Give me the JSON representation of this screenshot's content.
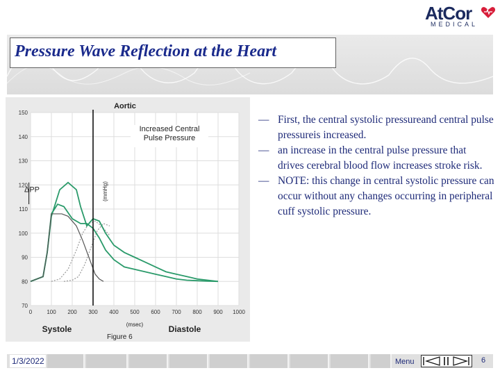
{
  "header": {
    "title": "Pressure Wave Reflection at the Heart",
    "logo_text": "AtCor",
    "logo_sub": "MEDICAL"
  },
  "colors": {
    "title": "#1a2a8c",
    "text": "#1e2a78",
    "curve": "#2a9a6a",
    "dotted": "#999999"
  },
  "chart_data": {
    "type": "line",
    "title": "Aortic",
    "xlabel": "(msec)",
    "ylabel": "(mmHg)",
    "x_ticks": [
      "0",
      "100",
      "200",
      "300",
      "400",
      "500",
      "600",
      "700",
      "800",
      "900",
      "1000"
    ],
    "y_ticks": [
      "70",
      "80",
      "90",
      "100",
      "110",
      "120",
      "130",
      "140",
      "150"
    ],
    "xlim": [
      0,
      1000
    ],
    "ylim": [
      70,
      150
    ],
    "grid": true,
    "phase_labels": [
      "Systole",
      "Diastole"
    ],
    "annotation": "Increased Central Pulse Pressure",
    "delta_label": "ΔPP",
    "series": [
      {
        "x": [
          0,
          60,
          80,
          100,
          140,
          180,
          220,
          240,
          270,
          300,
          330,
          360,
          400,
          450,
          500,
          550,
          600,
          650,
          700,
          750,
          800,
          850,
          900
        ],
        "y": [
          80,
          82,
          92,
          107,
          118,
          121,
          118,
          111,
          103,
          106,
          105,
          100,
          95,
          92,
          90,
          88,
          86,
          84,
          83,
          82,
          81,
          80.5,
          80
        ]
      },
      {
        "x": [
          0,
          60,
          80,
          100,
          130,
          160,
          200,
          240,
          270,
          300,
          330,
          360,
          400,
          450,
          500,
          550,
          600,
          650,
          700,
          750,
          800,
          850,
          900
        ],
        "y": [
          80,
          82,
          92,
          108,
          112,
          111,
          106,
          104,
          104,
          102,
          98,
          93,
          89,
          86,
          85,
          84,
          83,
          82,
          81,
          80.5,
          80.3,
          80.1,
          80
        ]
      },
      {
        "x": [
          0,
          60,
          80,
          100,
          150,
          180,
          220,
          250,
          280,
          310,
          330,
          350
        ],
        "y": [
          80,
          82,
          92,
          108,
          108,
          107,
          103,
          97,
          90,
          83,
          81,
          80
        ]
      }
    ],
    "dotted_series": [
      {
        "x": [
          100,
          140,
          180,
          220,
          250,
          280,
          310,
          340,
          380
        ],
        "y": [
          80,
          81,
          85,
          93,
          100,
          104,
          105,
          103,
          99
        ]
      },
      {
        "x": [
          160,
          200,
          230,
          260,
          290,
          320,
          350,
          380
        ],
        "y": [
          80,
          80.5,
          82,
          87,
          94,
          101,
          104,
          103
        ]
      }
    ],
    "marker_x": 300,
    "caption": "Figure 6"
  },
  "bullets": [
    {
      "dash": "—",
      "text": "First, the central systolic pressureand central pulse pressureis increased."
    },
    {
      "dash": "—",
      "text": "an increase in the central pulse pressure that drives cerebral blood flow increases stroke risk."
    },
    {
      "dash": "—",
      "text": "NOTE: this change in central systolic pressure can occur without any changes occurring in peripheral cuff systolic pressure."
    }
  ],
  "footer": {
    "date": "1/3/2022",
    "menu_label": "Menu",
    "page_number": "6"
  }
}
